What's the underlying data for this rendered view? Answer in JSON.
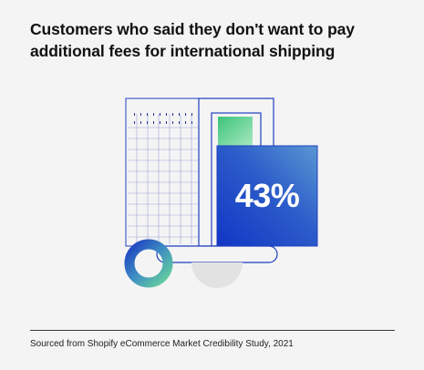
{
  "title": {
    "line1": "Customers who said they don't want to pay",
    "line2": "additional fees for international shipping"
  },
  "stat": {
    "value": "43%"
  },
  "source": {
    "text": "Sourced from Shopify eCommerce Market Credibility Study, 2021"
  },
  "colors": {
    "background": "#f4f4f4",
    "outline_blue": "#1f3fbf",
    "gradient_blue_dark": "#1438c4",
    "gradient_blue_light": "#4d8ad0",
    "green": "#46c981",
    "wheel_gray": "#e2e2e2"
  },
  "icons": [
    "grid-pattern",
    "cart-illustration",
    "wheel-icon"
  ]
}
